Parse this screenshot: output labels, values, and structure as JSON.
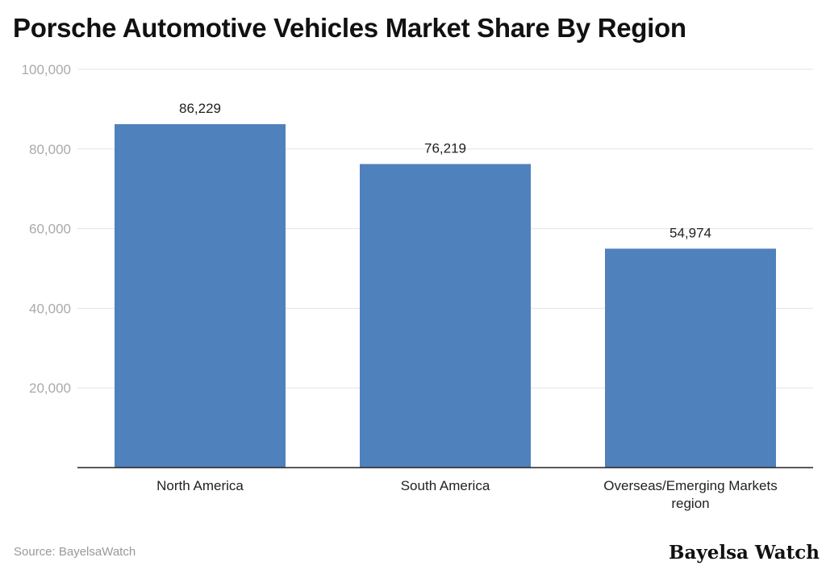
{
  "chart_data": {
    "type": "bar",
    "title": "Porsche Automotive Vehicles Market Share By Region",
    "categories": [
      "North America",
      "South America",
      "Overseas/Emerging Markets region"
    ],
    "values": [
      86229,
      76219,
      54974
    ],
    "data_labels": [
      "86,229",
      "76,219",
      "54,974"
    ],
    "yticks": [
      "20,000",
      "40,000",
      "60,000",
      "80,000",
      "100,000"
    ],
    "ytick_values": [
      20000,
      40000,
      60000,
      80000,
      100000
    ],
    "ylim": [
      0,
      100000
    ],
    "xlabel": "",
    "ylabel": "",
    "grid": true,
    "bar_color": "#4f81bd"
  },
  "footer": {
    "source": "Source: BayelsaWatch",
    "logo": "Bayelsa Watch"
  }
}
